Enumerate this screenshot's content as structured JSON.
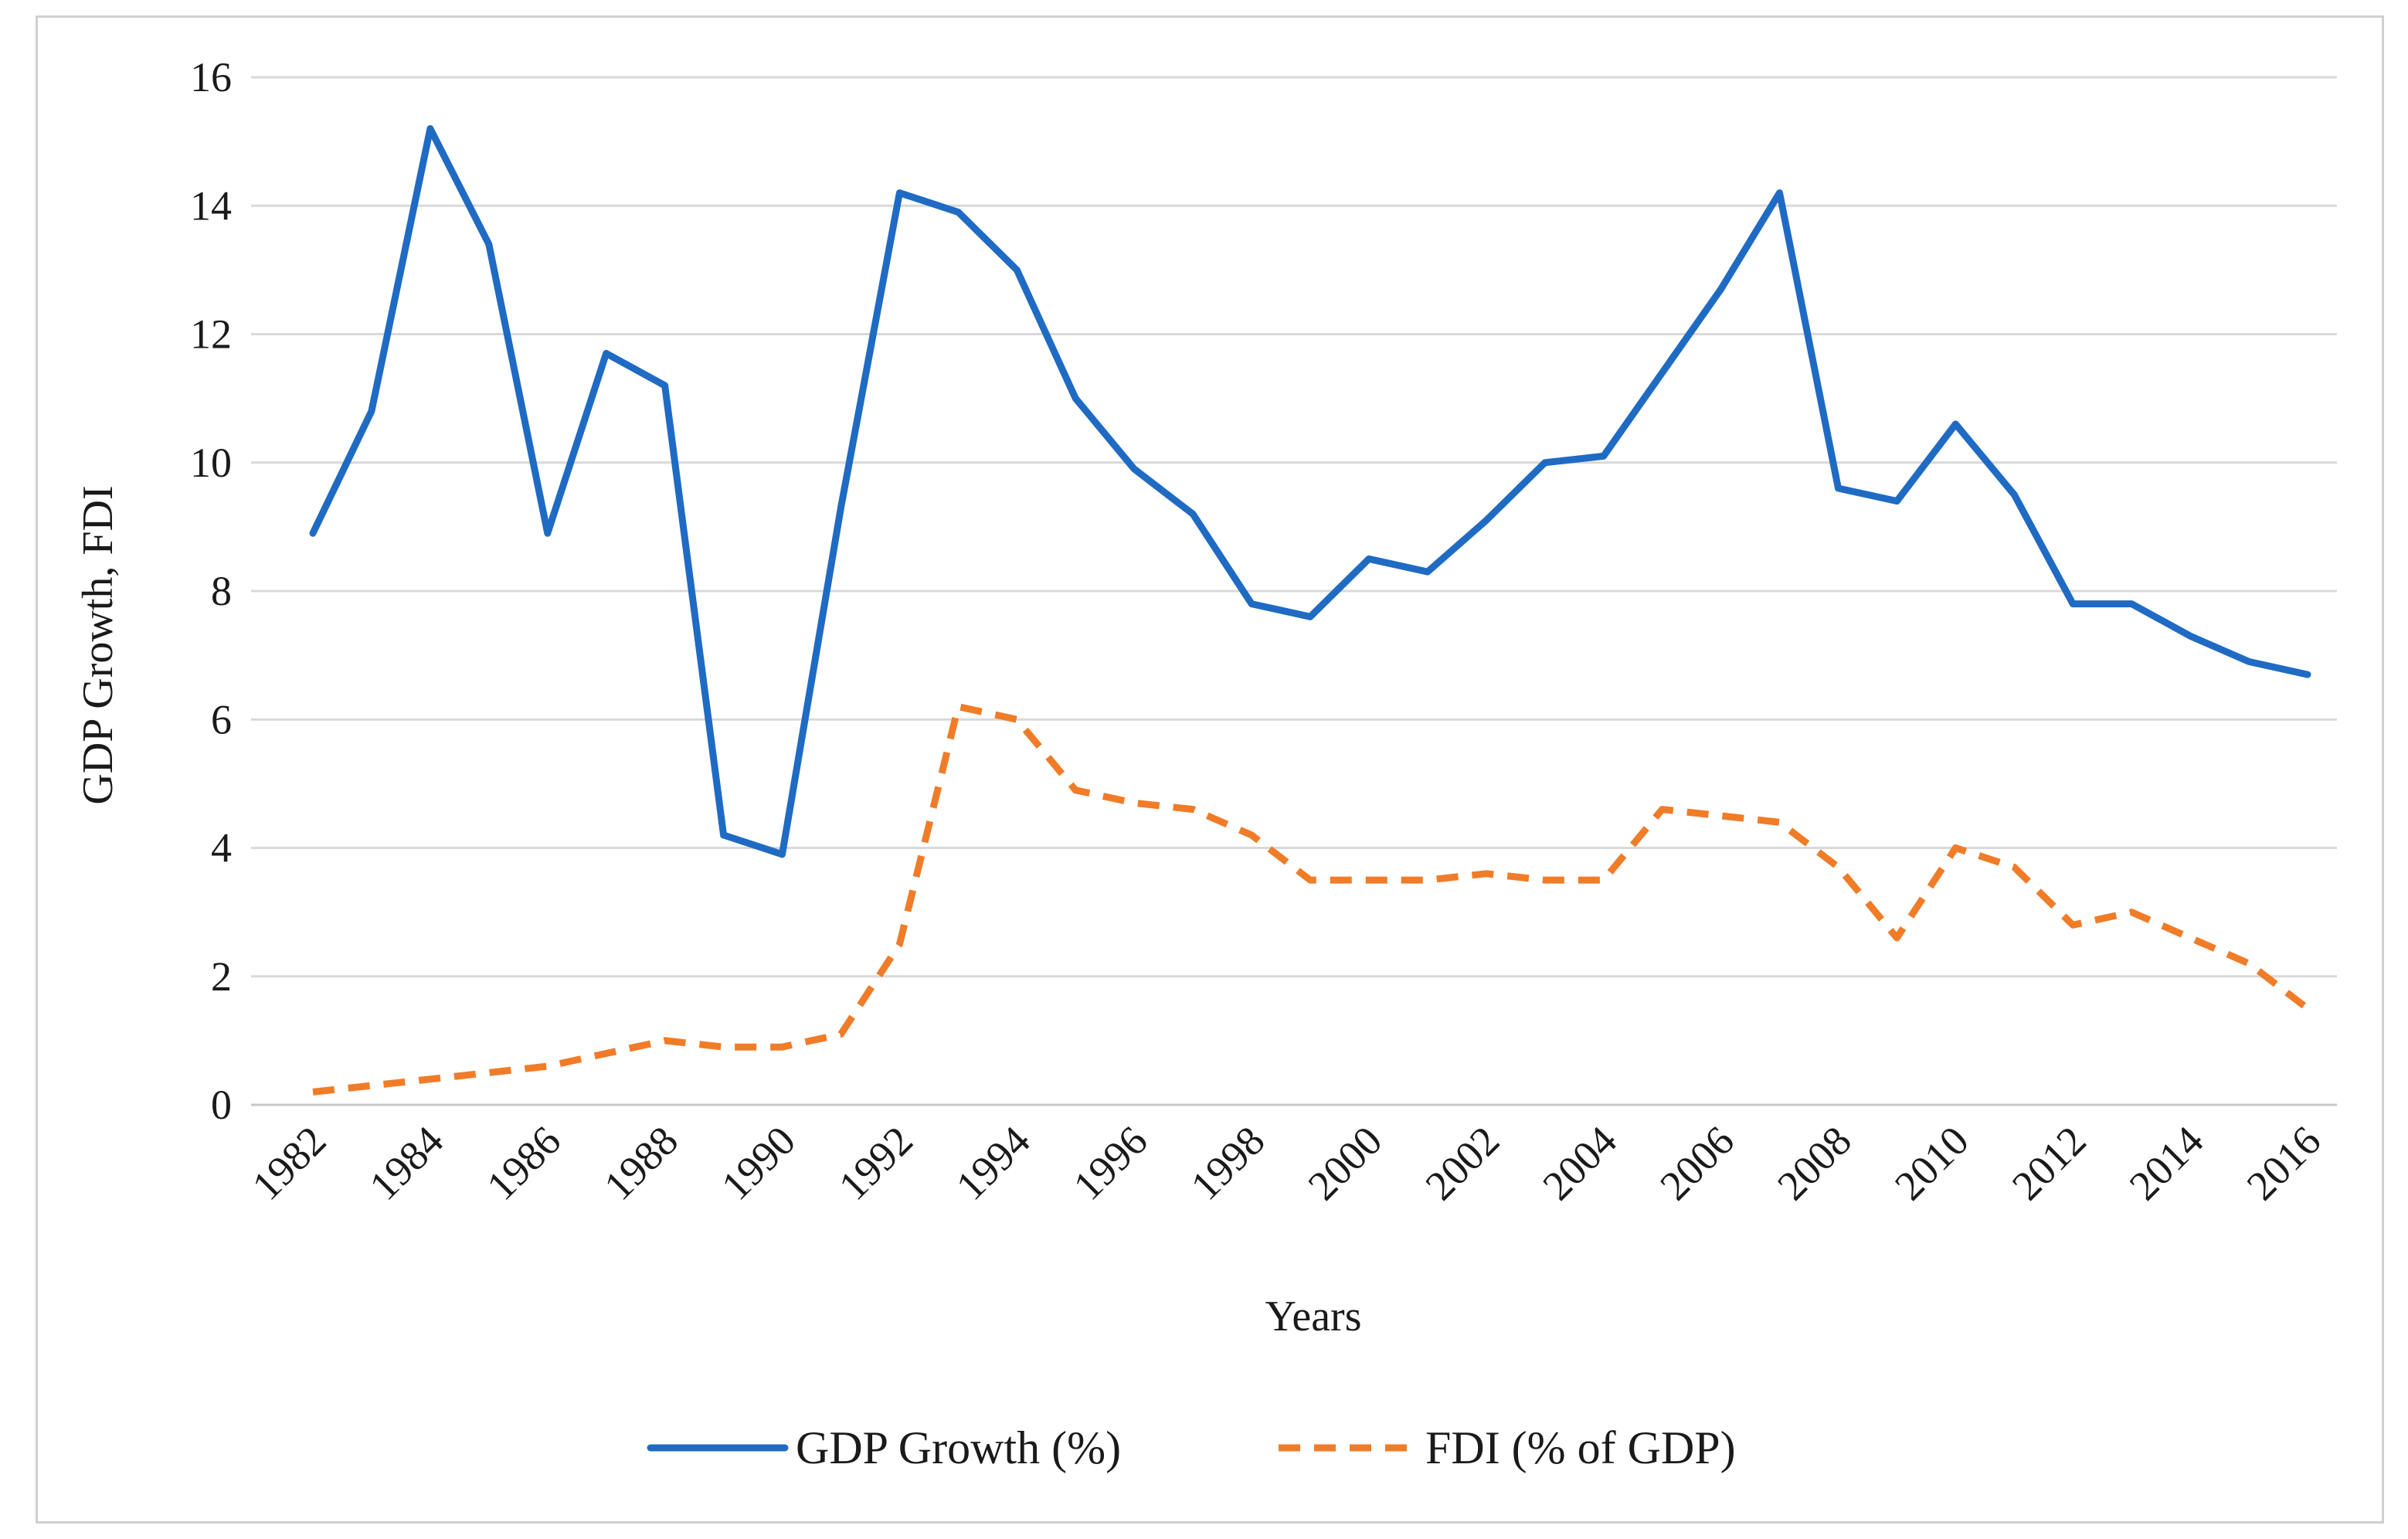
{
  "chart_data": {
    "type": "line",
    "title": "",
    "xlabel": "Years",
    "ylabel": "GDP Growth,  FDI",
    "ylim": [
      0,
      16
    ],
    "yticks": [
      "0",
      "2",
      "4",
      "6",
      "8",
      "10",
      "12",
      "14",
      "16"
    ],
    "x": [
      1982,
      1983,
      1984,
      1985,
      1986,
      1987,
      1988,
      1989,
      1990,
      1991,
      1992,
      1993,
      1994,
      1995,
      1996,
      1997,
      1998,
      1999,
      2000,
      2001,
      2002,
      2003,
      2004,
      2005,
      2006,
      2007,
      2008,
      2009,
      2010,
      2011,
      2012,
      2013,
      2014,
      2015,
      2016
    ],
    "xtick_labels": [
      "1982",
      "1984",
      "1986",
      "1988",
      "1990",
      "1992",
      "1994",
      "1996",
      "1998",
      "2000",
      "2002",
      "2004",
      "2006",
      "2008",
      "2010",
      "2012",
      "2014",
      "2016"
    ],
    "grid": true,
    "legend_position": "bottom",
    "series": [
      {
        "name": "GDP Growth (%)",
        "color": "#1f6bc4",
        "style": "solid",
        "values": [
          8.9,
          10.8,
          15.2,
          13.4,
          8.9,
          11.7,
          11.2,
          4.2,
          3.9,
          9.3,
          14.2,
          13.9,
          13.0,
          11.0,
          9.9,
          9.2,
          7.8,
          7.6,
          8.5,
          8.3,
          9.1,
          10.0,
          10.1,
          11.4,
          12.7,
          14.2,
          9.6,
          9.4,
          10.6,
          9.5,
          7.8,
          7.8,
          7.3,
          6.9,
          6.7
        ]
      },
      {
        "name": "FDI (% of GDP)",
        "color": "#f07c28",
        "style": "dashed",
        "values": [
          0.2,
          0.3,
          0.4,
          0.5,
          0.6,
          0.8,
          1.0,
          0.9,
          0.9,
          1.1,
          2.5,
          6.2,
          6.0,
          4.9,
          4.7,
          4.6,
          4.2,
          3.5,
          3.5,
          3.5,
          3.6,
          3.5,
          3.5,
          4.6,
          4.5,
          4.4,
          3.7,
          2.6,
          4.0,
          3.7,
          2.8,
          3.0,
          2.6,
          2.2,
          1.5
        ]
      }
    ]
  }
}
